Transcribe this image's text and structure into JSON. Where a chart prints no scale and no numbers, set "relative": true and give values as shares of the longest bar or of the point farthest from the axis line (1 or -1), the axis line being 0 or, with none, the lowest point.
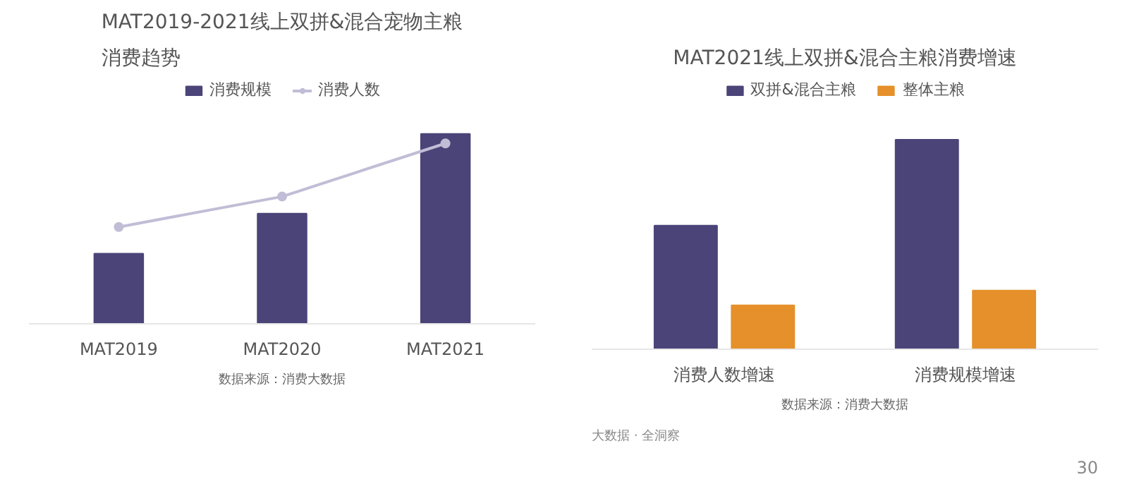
{
  "chart_data": [
    {
      "type": "bar",
      "title": "MAT2019-2021线上双拼&混合宠物主粮消费趋势",
      "categories": [
        "MAT2019",
        "MAT2020",
        "MAT2021"
      ],
      "relative": true,
      "legend": "top",
      "grid": false,
      "series": [
        {
          "name": "消费规模",
          "color": "#4a4478",
          "values": [
            0.37,
            0.58,
            1.0
          ]
        },
        {
          "name": "消费人数",
          "type": "line",
          "color": "#c2bdd6",
          "marker": "circle",
          "values": [
            0.51,
            0.67,
            0.95
          ]
        }
      ],
      "annotations": [
        "数据来源：消费大数据"
      ]
    },
    {
      "type": "bar",
      "title": "MAT2021线上双拼&混合主粮消费增速",
      "categories": [
        "消费人数增速",
        "消费规模增速"
      ],
      "relative": true,
      "legend": "top",
      "grid": false,
      "series": [
        {
          "name": "双拼&混合主粮",
          "color": "#4a4478",
          "values": [
            0.59,
            1.0
          ]
        },
        {
          "name": "整体主粮",
          "color": "#e5902a",
          "values": [
            0.21,
            0.28
          ]
        }
      ],
      "annotations": [
        "数据来源：消费大数据",
        "大数据 · 全洞察",
        "30"
      ]
    }
  ]
}
